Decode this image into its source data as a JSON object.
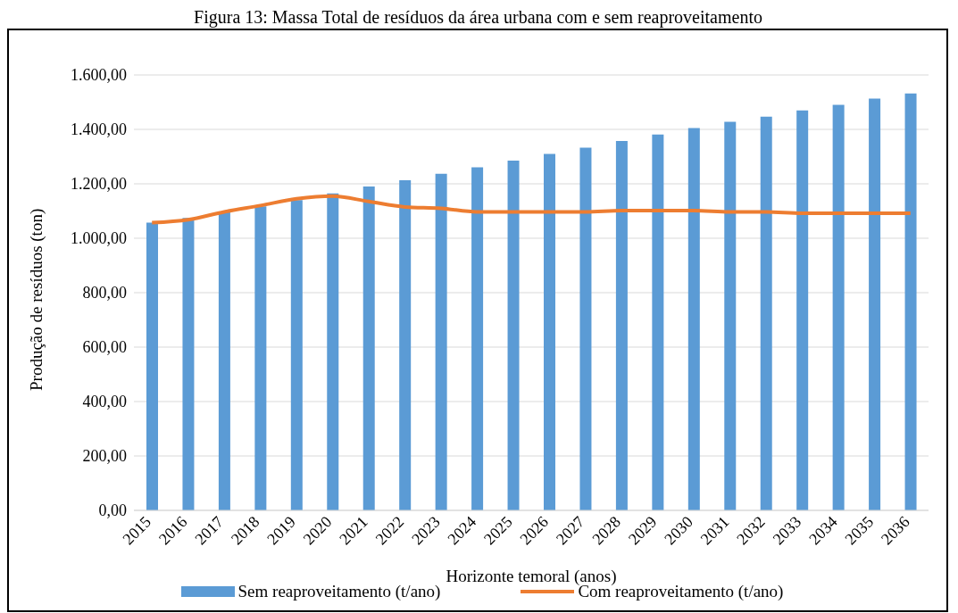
{
  "chart_data": {
    "type": "bar",
    "title": "Figura 13: Massa Total de resíduos da área urbana com e sem reaproveitamento",
    "xlabel": "Horizonte temoral (anos)",
    "ylabel": "Produção de resíduos (ton)",
    "categories": [
      "2015",
      "2016",
      "2017",
      "2018",
      "2019",
      "2020",
      "2021",
      "2022",
      "2023",
      "2024",
      "2025",
      "2026",
      "2027",
      "2028",
      "2029",
      "2030",
      "2031",
      "2032",
      "2033",
      "2034",
      "2035",
      "2036"
    ],
    "series": [
      {
        "name": "Sem reaproveitamento (t/ano)",
        "color": "#5b9bd5",
        "values": [
          1057,
          1075,
          1095,
          1117,
          1140,
          1165,
          1190,
          1213,
          1237,
          1261,
          1285,
          1310,
          1333,
          1357,
          1381,
          1405,
          1428,
          1447,
          1470,
          1490,
          1513,
          1532
        ]
      },
      {
        "name": "Com reaproveitamento (t/ano)",
        "type": "line",
        "color": "#ed7d31",
        "values": [
          1057,
          1068,
          1097,
          1120,
          1145,
          1155,
          1135,
          1115,
          1110,
          1097,
          1097,
          1097,
          1097,
          1102,
          1102,
          1102,
          1097,
          1097,
          1092,
          1092,
          1092,
          1092
        ]
      }
    ],
    "ylim": [
      0,
      1600
    ],
    "yticks": [
      {
        "value": 0,
        "label": "0,00"
      },
      {
        "value": 200,
        "label": "200,00"
      },
      {
        "value": 400,
        "label": "400,00"
      },
      {
        "value": 600,
        "label": "600,00"
      },
      {
        "value": 800,
        "label": "800,00"
      },
      {
        "value": 1000,
        "label": "1.000,00"
      },
      {
        "value": 1200,
        "label": "1.200,00"
      },
      {
        "value": 1400,
        "label": "1.400,00"
      },
      {
        "value": 1600,
        "label": "1.600,00"
      }
    ],
    "grid": "y",
    "legend": "bottom",
    "marker": "none",
    "line_style": "solid"
  }
}
